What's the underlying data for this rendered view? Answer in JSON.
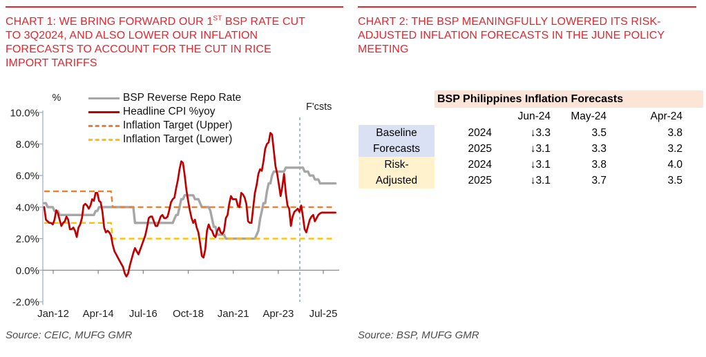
{
  "colors": {
    "accent_red": "#e8252d",
    "rrp_gray": "#a6a6a6",
    "cpi_red": "#c00000",
    "target_upper_orange": "#ed7d31",
    "target_lower_gold": "#ffc000",
    "forecast_line_blue": "#7a9bd1",
    "table_header_peach": "#fce4d6",
    "baseline_blue": "#d9e1f2",
    "risk_adjusted_yellow": "#fff2cc"
  },
  "left_panel": {
    "title_lines": [
      {
        "pre": "CHART 1: WE BRING FORWARD OUR 1",
        "sup": "ST",
        "post": " BSP RATE CUT"
      },
      {
        "text": "TO 3Q2024, AND ALSO LOWER OUR INFLATION"
      },
      {
        "text": "FORECASTS TO ACCOUNT FOR THE CUT IN RICE"
      },
      {
        "text": "IMPORT TARIFFS"
      }
    ],
    "source": "Source: CEIC, MUFG GMR"
  },
  "right_panel": {
    "title_lines": [
      {
        "text": "CHART 2: THE BSP MEANINGFULLY LOWERED ITS RISK-"
      },
      {
        "text": "ADJUSTED INFLATION FORECASTS IN THE JUNE POLICY"
      },
      {
        "text": "MEETING"
      }
    ],
    "source": "Source: BSP, MUFG GMR",
    "table": {
      "title": "BSP Philippines Inflation Forecasts",
      "col_headers": [
        "Jun-24",
        "May-24",
        "Apr-24"
      ],
      "row_groups": [
        {
          "label": "Baseline Forecasts",
          "label_lines": [
            "Baseline",
            "Forecasts"
          ],
          "bg": "#d9e1f2",
          "rows": [
            {
              "year": "2024",
              "values": [
                "↓3.3",
                "3.5",
                "3.8"
              ]
            },
            {
              "year": "2025",
              "values": [
                "↓3.1",
                "3.3",
                "3.2"
              ]
            }
          ]
        },
        {
          "label": "Risk-Adjusted",
          "label_lines": [
            "Risk-",
            "Adjusted"
          ],
          "bg": "#fff2cc",
          "rows": [
            {
              "year": "2024",
              "values": [
                "↓3.1",
                "3.8",
                "4.0"
              ]
            },
            {
              "year": "2025",
              "values": [
                "↓3.1",
                "3.7",
                "3.5"
              ]
            }
          ]
        }
      ]
    }
  },
  "chart_data": [
    {
      "type": "line",
      "title": "BSP policy rate and headline CPI with forecasts",
      "unit_label": "%",
      "forecast_label": "F'csts",
      "forecast_start": "Jun-24",
      "x_start": "Jan-2012",
      "x_end": "Mar-2026",
      "months_per_point": 1,
      "xtick_labels": [
        "Jan-12",
        "Apr-14",
        "Jul-16",
        "Oct-18",
        "Jan-21",
        "Apr-23",
        "Jul-25"
      ],
      "ytick_labels": [
        "10.0%",
        "8.0%",
        "6.0%",
        "4.0%",
        "2.0%",
        "0.0%",
        "-2.0%"
      ],
      "ytick_values": [
        10,
        8,
        6,
        4,
        2,
        0,
        -2
      ],
      "ylim": [
        -2,
        10
      ],
      "grid": false,
      "legend_position": "top-left",
      "draw_order": [
        0,
        2,
        3,
        1
      ],
      "series": [
        {
          "name": "BSP Reverse Repo Rate",
          "color": "#a6a6a6",
          "width": 3.4,
          "style": "solid",
          "mode": "steps",
          "points": [
            [
              0,
              4.25
            ],
            [
              2,
              4.0
            ],
            [
              6,
              3.75
            ],
            [
              9,
              3.5
            ],
            [
              30,
              3.75
            ],
            [
              32,
              4.0
            ],
            [
              53,
              3.0
            ],
            [
              76,
              3.25
            ],
            [
              77,
              3.5
            ],
            [
              79,
              4.0
            ],
            [
              80,
              4.5
            ],
            [
              82,
              4.75
            ],
            [
              88,
              4.5
            ],
            [
              91,
              4.25
            ],
            [
              92,
              4.0
            ],
            [
              97,
              3.75
            ],
            [
              98,
              3.25
            ],
            [
              99,
              2.75
            ],
            [
              101,
              2.25
            ],
            [
              106,
              2.0
            ],
            [
              124,
              2.25
            ],
            [
              125,
              2.5
            ],
            [
              126,
              3.25
            ],
            [
              127,
              3.75
            ],
            [
              128,
              4.25
            ],
            [
              130,
              5.0
            ],
            [
              131,
              5.5
            ],
            [
              133,
              6.0
            ],
            [
              134,
              6.25
            ],
            [
              141,
              6.5
            ],
            [
              152,
              6.25
            ],
            [
              155,
              6.0
            ],
            [
              158,
              5.75
            ],
            [
              161,
              5.5
            ],
            [
              170,
              5.5
            ]
          ]
        },
        {
          "name": "Headline CPI %yoy",
          "color": "#c00000",
          "width": 2.7,
          "style": "solid",
          "mode": "monthly",
          "start_month": "Jan-2012",
          "values": [
            4.0,
            3.2,
            3.1,
            3.0,
            3.0,
            2.9,
            3.2,
            3.8,
            3.6,
            3.2,
            2.8,
            3.0,
            3.1,
            3.4,
            3.2,
            2.6,
            2.6,
            2.7,
            2.5,
            2.1,
            2.7,
            2.9,
            3.3,
            4.1,
            4.2,
            4.1,
            3.9,
            4.1,
            4.5,
            4.4,
            4.9,
            4.9,
            4.4,
            4.3,
            3.7,
            2.7,
            2.4,
            2.5,
            2.4,
            2.2,
            1.6,
            1.2,
            1.0,
            0.8,
            0.6,
            0.4,
            0.2,
            -0.2,
            -0.4,
            -0.2,
            0.3,
            0.7,
            1.1,
            1.4,
            1.2,
            1.0,
            1.3,
            1.6,
            1.9,
            2.2,
            2.7,
            3.3,
            3.4,
            3.4,
            3.1,
            2.8,
            2.8,
            3.1,
            3.4,
            3.5,
            3.3,
            3.3,
            3.4,
            3.8,
            4.3,
            4.5,
            4.6,
            5.2,
            5.7,
            6.4,
            6.9,
            6.8,
            6.0,
            5.1,
            4.4,
            3.8,
            3.3,
            3.0,
            3.2,
            2.7,
            2.4,
            1.7,
            0.9,
            0.8,
            1.3,
            2.5,
            2.9,
            2.6,
            2.5,
            2.2,
            2.1,
            2.5,
            2.7,
            2.4,
            2.3,
            2.5,
            3.3,
            3.5,
            4.2,
            4.7,
            4.5,
            4.5,
            4.5,
            4.1,
            4.0,
            4.9,
            4.8,
            4.6,
            4.2,
            3.1,
            3.0,
            3.0,
            4.0,
            4.9,
            5.4,
            6.1,
            6.4,
            6.3,
            6.9,
            7.7,
            8.0,
            8.1,
            8.7,
            8.6,
            7.6,
            6.6,
            6.1,
            5.4,
            4.7,
            5.3,
            6.1,
            4.9,
            4.1,
            3.9,
            2.8,
            3.4,
            3.7,
            3.8,
            3.9,
            3.7,
            4.1,
            3.4,
            2.6,
            2.4,
            2.8,
            3.2,
            3.4,
            3.5,
            3.1,
            3.3,
            3.5,
            3.6,
            3.65,
            3.65,
            3.65,
            3.65,
            3.65,
            3.65,
            3.65,
            3.65,
            3.65
          ]
        },
        {
          "name": "Inflation Target (Upper)",
          "color": "#ed7d31",
          "width": 2.4,
          "style": "dashed",
          "mode": "points",
          "points": [
            [
              0,
              5
            ],
            [
              39,
              5
            ],
            [
              40,
              4
            ],
            [
              170,
              4
            ]
          ]
        },
        {
          "name": "Inflation Target (Lower)",
          "color": "#ffc000",
          "width": 2.4,
          "style": "dashed",
          "mode": "points",
          "points": [
            [
              0,
              3
            ],
            [
              39,
              3
            ],
            [
              40,
              2
            ],
            [
              170,
              2
            ]
          ]
        }
      ]
    },
    {
      "type": "table",
      "title": "BSP Philippines Inflation Forecasts",
      "columns": [
        "Jun-24",
        "May-24",
        "Apr-24"
      ],
      "rows": [
        {
          "group": "Baseline Forecasts",
          "year": 2024,
          "values": [
            3.3,
            3.5,
            3.8
          ],
          "jun_revision": "down"
        },
        {
          "group": "Baseline Forecasts",
          "year": 2025,
          "values": [
            3.1,
            3.3,
            3.2
          ],
          "jun_revision": "down"
        },
        {
          "group": "Risk-Adjusted",
          "year": 2024,
          "values": [
            3.1,
            3.8,
            4.0
          ],
          "jun_revision": "down"
        },
        {
          "group": "Risk-Adjusted",
          "year": 2025,
          "values": [
            3.1,
            3.7,
            3.5
          ],
          "jun_revision": "down"
        }
      ]
    }
  ]
}
